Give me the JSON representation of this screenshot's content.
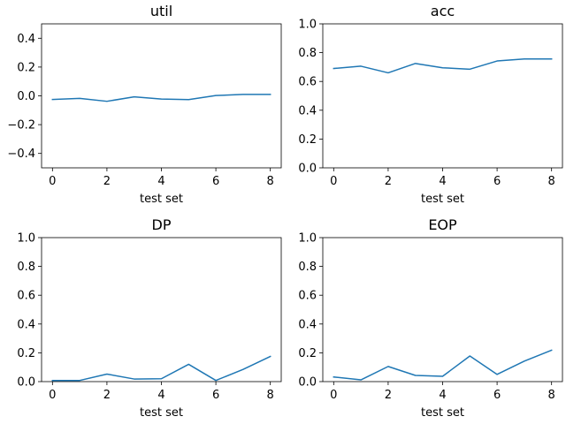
{
  "colors": {
    "line": "#1f77b4",
    "axes": "#000000",
    "background": "#ffffff"
  },
  "chart_data": [
    {
      "type": "line",
      "title": "util",
      "xlabel": "test set",
      "ylabel": "",
      "grid": false,
      "xlim": [
        -0.4,
        8.4
      ],
      "ylim": [
        -0.5,
        0.5
      ],
      "xticks": [
        "0",
        "2",
        "4",
        "6",
        "8"
      ],
      "yticks": [
        "−0.4",
        "−0.2",
        "0.0",
        "0.2",
        "0.4"
      ],
      "x": [
        0,
        1,
        2,
        3,
        4,
        5,
        6,
        7,
        8
      ],
      "series": [
        {
          "values": [
            -0.025,
            -0.018,
            -0.038,
            -0.007,
            -0.022,
            -0.026,
            0.002,
            0.01,
            0.01
          ]
        }
      ]
    },
    {
      "type": "line",
      "title": "acc",
      "xlabel": "test set",
      "ylabel": "",
      "grid": false,
      "xlim": [
        -0.4,
        8.4
      ],
      "ylim": [
        0,
        1
      ],
      "xticks": [
        "0",
        "2",
        "4",
        "6",
        "8"
      ],
      "yticks": [
        "0.0",
        "0.2",
        "0.4",
        "0.6",
        "0.8",
        "1.0"
      ],
      "x": [
        0,
        1,
        2,
        3,
        4,
        5,
        6,
        7,
        8
      ],
      "series": [
        {
          "values": [
            0.69,
            0.706,
            0.66,
            0.725,
            0.695,
            0.685,
            0.742,
            0.756,
            0.756
          ]
        }
      ]
    },
    {
      "type": "line",
      "title": "DP",
      "xlabel": "test set",
      "ylabel": "",
      "grid": false,
      "xlim": [
        -0.4,
        8.4
      ],
      "ylim": [
        0,
        1
      ],
      "xticks": [
        "0",
        "2",
        "4",
        "6",
        "8"
      ],
      "yticks": [
        "0.0",
        "0.2",
        "0.4",
        "0.6",
        "0.8",
        "1.0"
      ],
      "x": [
        0,
        1,
        2,
        3,
        4,
        5,
        6,
        7,
        8
      ],
      "series": [
        {
          "values": [
            0.008,
            0.008,
            0.052,
            0.018,
            0.02,
            0.12,
            0.008,
            0.085,
            0.175
          ]
        }
      ]
    },
    {
      "type": "line",
      "title": "EOP",
      "xlabel": "test set",
      "ylabel": "",
      "grid": false,
      "xlim": [
        -0.4,
        8.4
      ],
      "ylim": [
        0,
        1
      ],
      "xticks": [
        "0",
        "2",
        "4",
        "6",
        "8"
      ],
      "yticks": [
        "0.0",
        "0.2",
        "0.4",
        "0.6",
        "0.8",
        "1.0"
      ],
      "x": [
        0,
        1,
        2,
        3,
        4,
        5,
        6,
        7,
        8
      ],
      "series": [
        {
          "values": [
            0.032,
            0.012,
            0.105,
            0.043,
            0.037,
            0.178,
            0.05,
            0.142,
            0.218
          ]
        }
      ]
    }
  ]
}
